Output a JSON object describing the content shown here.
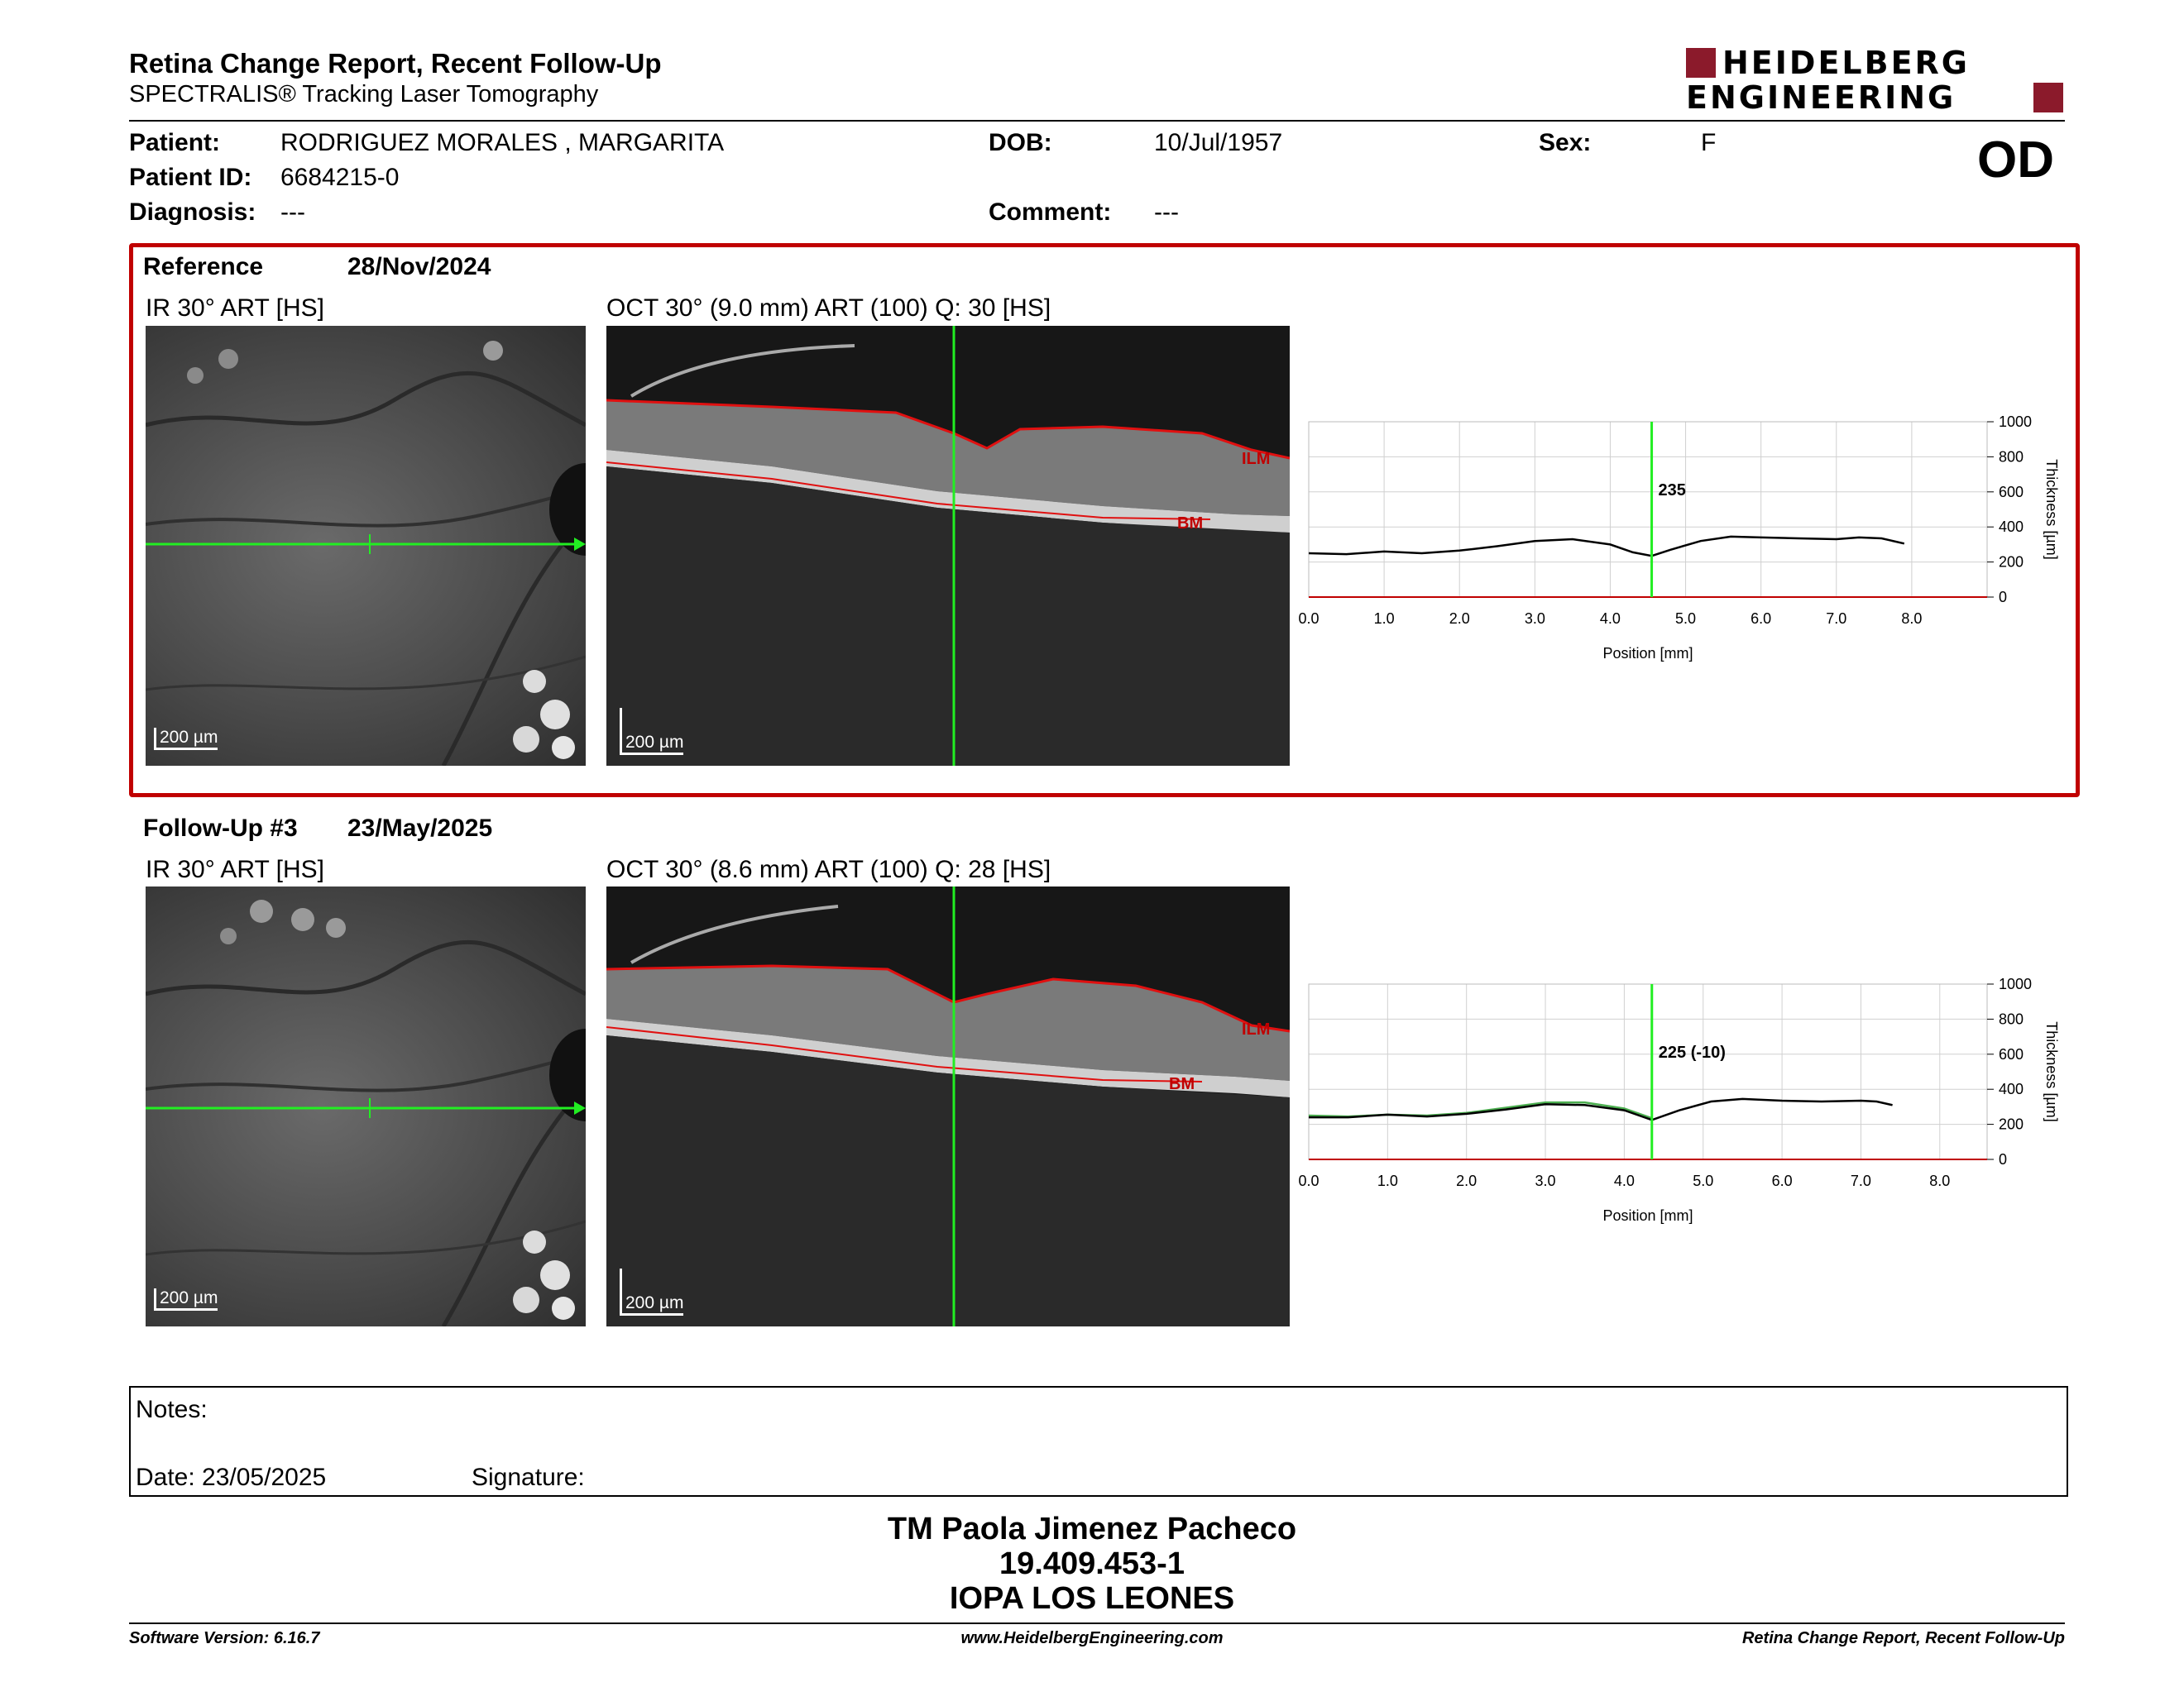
{
  "header": {
    "title": "Retina Change Report, Recent Follow-Up",
    "subtitle": "SPECTRALIS® Tracking Laser Tomography",
    "logo_line1": "HEIDELBERG",
    "logo_line2": "ENGINEERING",
    "eye": "OD"
  },
  "patient": {
    "name_label": "Patient:",
    "name": "RODRIGUEZ MORALES , MARGARITA",
    "id_label": "Patient ID:",
    "id": "6684215-0",
    "diag_label": "Diagnosis:",
    "diag": "---",
    "dob_label": "DOB:",
    "dob": "10/Jul/1957",
    "comment_label": "Comment:",
    "comment": "---",
    "sex_label": "Sex:",
    "sex": "F"
  },
  "reference": {
    "label": "Reference",
    "date": "28/Nov/2024",
    "ir_title": "IR 30° ART [HS]",
    "oct_title": "OCT 30° (9.0 mm) ART (100) Q: 30 [HS]",
    "scale_ir": "200 µm",
    "scale_oct": "200 µm",
    "ilm": "ILM",
    "bm": "BM",
    "value_label": "235",
    "accent": "#c00000"
  },
  "followup": {
    "label": "Follow-Up #3",
    "date": "23/May/2025",
    "ir_title": "IR 30° ART [HS]",
    "oct_title": "OCT 30° (8.6 mm) ART (100) Q: 28 [HS]",
    "scale_ir": "200 µm",
    "scale_oct": "200 µm",
    "ilm": "ILM",
    "bm": "BM",
    "value_label": "225 (-10)"
  },
  "chart_data": [
    {
      "type": "line",
      "xlabel": "Position [mm]",
      "ylabel": "Thickness [µm]",
      "xlim": [
        0,
        9
      ],
      "ylim": [
        0,
        1000
      ],
      "xticks": [
        "0.0",
        "1.0",
        "2.0",
        "3.0",
        "4.0",
        "5.0",
        "6.0",
        "7.0",
        "8.0"
      ],
      "yticks": [
        "0",
        "200",
        "400",
        "600",
        "800",
        "1000"
      ],
      "cursor_x": 4.55,
      "series": [
        {
          "color": "#000000",
          "x": [
            0,
            0.5,
            1,
            1.5,
            2,
            2.5,
            3,
            3.5,
            4,
            4.3,
            4.55,
            4.8,
            5.2,
            5.6,
            6,
            6.5,
            7,
            7.3,
            7.6,
            7.9
          ],
          "y": [
            250,
            245,
            260,
            250,
            265,
            290,
            320,
            330,
            300,
            255,
            235,
            270,
            320,
            345,
            340,
            335,
            330,
            340,
            335,
            305
          ]
        }
      ]
    },
    {
      "type": "line",
      "xlabel": "Position [mm]",
      "ylabel": "Thickness [µm]",
      "xlim": [
        0,
        8.6
      ],
      "ylim": [
        0,
        1000
      ],
      "xticks": [
        "0.0",
        "1.0",
        "2.0",
        "3.0",
        "4.0",
        "5.0",
        "6.0",
        "7.0",
        "8.0"
      ],
      "yticks": [
        "0",
        "200",
        "400",
        "600",
        "800",
        "1000"
      ],
      "cursor_x": 4.35,
      "series": [
        {
          "color": "#4caf50",
          "x": [
            0,
            0.5,
            1,
            1.5,
            2,
            2.5,
            3,
            3.5,
            4,
            4.35
          ],
          "y": [
            250,
            245,
            255,
            250,
            265,
            295,
            325,
            325,
            290,
            235
          ]
        },
        {
          "color": "#000000",
          "x": [
            0,
            0.5,
            1,
            1.5,
            2,
            2.5,
            3,
            3.5,
            4,
            4.35,
            4.7,
            5.1,
            5.5,
            6,
            6.5,
            7,
            7.2,
            7.4
          ],
          "y": [
            240,
            240,
            255,
            245,
            260,
            285,
            315,
            310,
            280,
            225,
            280,
            330,
            345,
            335,
            330,
            335,
            330,
            310
          ]
        }
      ]
    }
  ],
  "notes": {
    "label": "Notes:",
    "date_label": "Date: 23/05/2025",
    "signature_label": "Signature:"
  },
  "signatory": {
    "name": "TM Paola Jimenez Pacheco",
    "id": "19.409.453-1",
    "org": "IOPA LOS LEONES"
  },
  "footer": {
    "software": "Software Version: 6.16.7",
    "url": "www.HeidelbergEngineering.com",
    "report": "Retina Change Report, Recent Follow-Up"
  }
}
